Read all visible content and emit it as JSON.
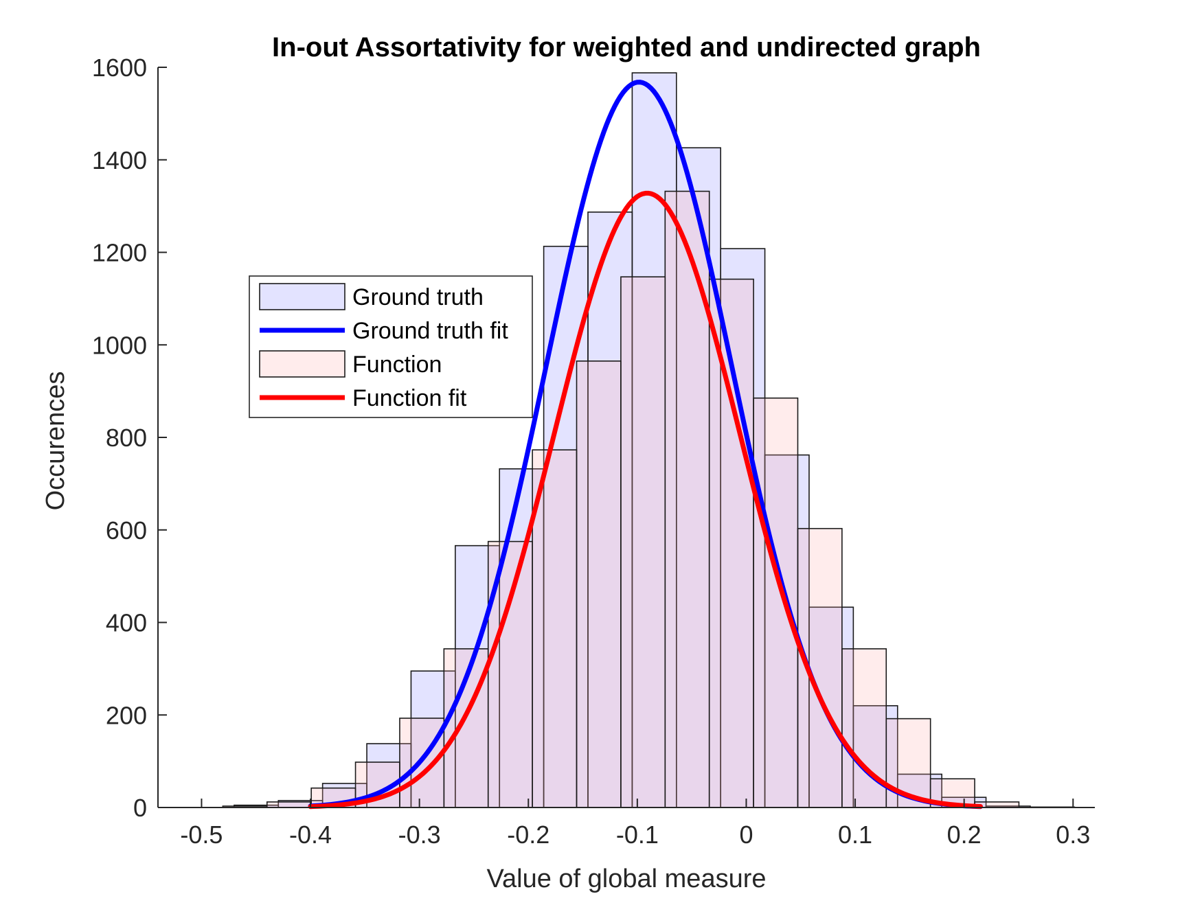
{
  "chart_data": {
    "type": "bar",
    "title": "In-out Assortativity for weighted and undirected graph",
    "xlabel": "Value of global measure",
    "ylabel": "Occurences",
    "xlim": [
      -0.54,
      0.32
    ],
    "ylim": [
      0,
      1600
    ],
    "xticks": [
      -0.5,
      -0.4,
      -0.3,
      -0.2,
      -0.1,
      0,
      0.1,
      0.2,
      0.3
    ],
    "xtick_labels": [
      "-0.5",
      "-0.4",
      "-0.3",
      "-0.2",
      "-0.1",
      "0",
      "0.1",
      "0.2",
      "0.3"
    ],
    "yticks": [
      0,
      200,
      400,
      600,
      800,
      1000,
      1200,
      1400,
      1600
    ],
    "ytick_labels": [
      "0",
      "200",
      "400",
      "600",
      "800",
      "1000",
      "1200",
      "1400",
      "1600"
    ],
    "grid": false,
    "legend_position": "center-left",
    "series": [
      {
        "name": "Ground truth",
        "kind": "histogram",
        "color": "#8080ff",
        "edges": [
          -0.5107,
          -0.4701,
          -0.4295,
          -0.3889,
          -0.3483,
          -0.3077,
          -0.2671,
          -0.2265,
          -0.1859,
          -0.1453,
          -0.1047,
          -0.0641,
          -0.0235,
          0.0171,
          0.0577,
          0.0983,
          0.1389,
          0.1795,
          0.2201,
          0.2607,
          0.3013
        ],
        "values": [
          0,
          5,
          15,
          52,
          138,
          295,
          566,
          732,
          1213,
          1287,
          1588,
          1426,
          1208,
          762,
          433,
          220,
          72,
          22,
          3,
          1
        ]
      },
      {
        "name": "Ground truth fit",
        "kind": "normal_fit",
        "color": "#0000ff",
        "mu": -0.0985,
        "sigma": 0.0855,
        "peak": 1568,
        "x_range": [
          -0.4,
          0.215
        ]
      },
      {
        "name": "Function",
        "kind": "histogram",
        "color": "#ffaaaa",
        "edges": [
          -0.4805,
          -0.4399,
          -0.3993,
          -0.3587,
          -0.3181,
          -0.2775,
          -0.2369,
          -0.1963,
          -0.1557,
          -0.1151,
          -0.0745,
          -0.0339,
          0.0067,
          0.0473,
          0.0879,
          0.1285,
          0.1691,
          0.2097,
          0.2503
        ],
        "values": [
          3,
          12,
          42,
          98,
          193,
          343,
          575,
          773,
          965,
          1147,
          1332,
          1142,
          885,
          603,
          343,
          192,
          62,
          12
        ]
      },
      {
        "name": "Function fit",
        "kind": "normal_fit",
        "color": "#ff0000",
        "mu": -0.091,
        "sigma": 0.0855,
        "peak": 1328,
        "x_range": [
          -0.4,
          0.215
        ]
      }
    ]
  }
}
